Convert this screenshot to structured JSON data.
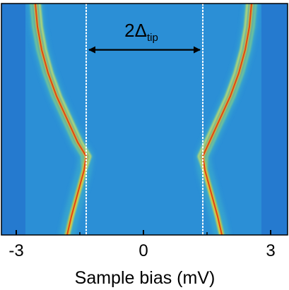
{
  "chart_data": {
    "type": "heatmap",
    "xlabel": "Sample bias (mV)",
    "xlim": [
      -3.35,
      3.4
    ],
    "x_ticks": [
      -3,
      0,
      3
    ],
    "x_tick_labels": [
      "-3",
      "0",
      "3"
    ],
    "ylabel": "",
    "annotation": {
      "main": "2Δ",
      "subscript": "tip",
      "arrow_from_x": -1.35,
      "arrow_to_x": 1.4
    },
    "reference_lines_x": [
      -1.35,
      1.4
    ],
    "colormap": [
      "#1a1f7a",
      "#1f4fc4",
      "#1f7fd8",
      "#2b9ad8",
      "#3fb5c8",
      "#7fcc8a",
      "#d8e85a",
      "#f0c020",
      "#e03010",
      "#7a0000"
    ],
    "background_color": "#2b8fd6",
    "ridges": [
      {
        "name": "left",
        "points": [
          [
            -2.55,
            0.0
          ],
          [
            -2.5,
            0.1
          ],
          [
            -2.4,
            0.2
          ],
          [
            -2.25,
            0.3
          ],
          [
            -2.05,
            0.4
          ],
          [
            -1.8,
            0.5
          ],
          [
            -1.55,
            0.6
          ],
          [
            -1.35,
            0.66
          ],
          [
            -1.4,
            0.72
          ],
          [
            -1.55,
            0.82
          ],
          [
            -1.7,
            0.92
          ],
          [
            -1.8,
            1.0
          ]
        ]
      },
      {
        "name": "right",
        "points": [
          [
            2.55,
            0.0
          ],
          [
            2.5,
            0.1
          ],
          [
            2.4,
            0.2
          ],
          [
            2.25,
            0.3
          ],
          [
            2.05,
            0.4
          ],
          [
            1.8,
            0.5
          ],
          [
            1.55,
            0.6
          ],
          [
            1.4,
            0.66
          ],
          [
            1.45,
            0.72
          ],
          [
            1.6,
            0.82
          ],
          [
            1.75,
            0.92
          ],
          [
            1.85,
            1.0
          ]
        ]
      }
    ]
  }
}
